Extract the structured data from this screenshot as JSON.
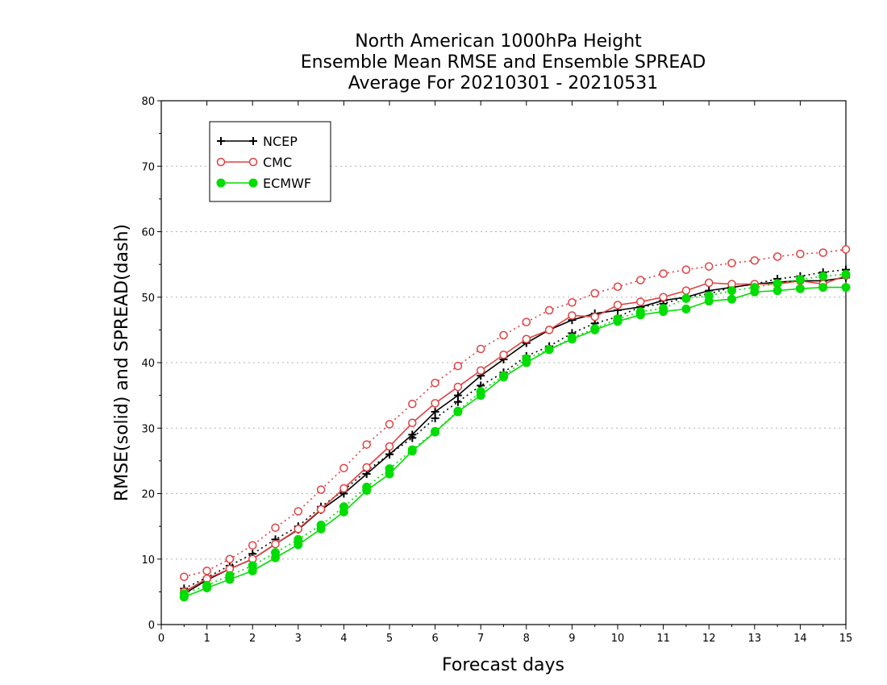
{
  "chart_data": {
    "type": "line",
    "title_lines": [
      "North American 1000hPa Height",
      "Ensemble Mean RMSE and Ensemble SPREAD",
      "Average For 20210301 - 20210531"
    ],
    "xlabel": "Forecast days",
    "ylabel": "RMSE(solid) and SPREAD(dash)",
    "xlim": [
      0,
      15
    ],
    "ylim": [
      0,
      80
    ],
    "xticks": [
      "0",
      "1",
      "2",
      "3",
      "4",
      "5",
      "6",
      "7",
      "8",
      "9",
      "10",
      "11",
      "12",
      "13",
      "14",
      "15"
    ],
    "yticks": [
      "0",
      "10",
      "20",
      "30",
      "40",
      "50",
      "60",
      "70",
      "80"
    ],
    "grid": true,
    "legend_position": "top-left",
    "x": [
      0.5,
      1,
      1.5,
      2,
      2.5,
      3,
      3.5,
      4,
      4.5,
      5,
      5.5,
      6,
      6.5,
      7,
      7.5,
      8,
      8.5,
      9,
      9.5,
      10,
      10.5,
      11,
      11.5,
      12,
      12.5,
      13,
      13.5,
      14,
      14.5,
      15
    ],
    "series": [
      {
        "name": "NCEP",
        "color": "#000000",
        "marker": "plus",
        "rmse": [
          4.7,
          6.8,
          8.5,
          10.0,
          12.3,
          14.5,
          17.5,
          20.0,
          23.0,
          26.0,
          29.0,
          32.5,
          35.0,
          38.0,
          40.5,
          43.0,
          45.0,
          46.5,
          47.5,
          48.0,
          48.5,
          49.5,
          50.0,
          51.0,
          51.5,
          52.0,
          52.3,
          52.5,
          52.5,
          53.0
        ],
        "spread": [
          5.5,
          7.2,
          9.0,
          10.8,
          13.0,
          15.0,
          18.0,
          20.5,
          23.5,
          26.0,
          28.5,
          31.5,
          34.0,
          36.5,
          38.5,
          41.0,
          42.5,
          44.5,
          46.0,
          47.0,
          48.5,
          49.0,
          50.0,
          50.5,
          51.5,
          52.0,
          52.8,
          53.2,
          53.8,
          54.2
        ]
      },
      {
        "name": "CMC",
        "color": "#e04040",
        "marker": "open-circle",
        "rmse": [
          5.0,
          7.0,
          8.5,
          10.0,
          12.3,
          14.6,
          17.6,
          20.8,
          24.0,
          27.2,
          30.8,
          33.8,
          36.3,
          38.8,
          41.2,
          43.6,
          45.0,
          47.2,
          47.0,
          48.8,
          49.3,
          50.0,
          51.0,
          52.2,
          52.0,
          52.0,
          52.0,
          52.5,
          52.0,
          53.3
        ],
        "spread": [
          7.3,
          8.2,
          10.0,
          12.1,
          14.8,
          17.3,
          20.6,
          23.9,
          27.5,
          30.6,
          33.7,
          36.9,
          39.5,
          42.1,
          44.2,
          46.2,
          48.0,
          49.2,
          50.6,
          51.6,
          52.6,
          53.6,
          54.2,
          54.7,
          55.2,
          55.6,
          56.2,
          56.6,
          56.8,
          57.3
        ]
      },
      {
        "name": "ECMWF",
        "color": "#00dd00",
        "marker": "filled-circle",
        "rmse": [
          4.2,
          5.6,
          6.9,
          8.2,
          10.2,
          12.2,
          14.6,
          17.2,
          20.5,
          23.0,
          26.5,
          29.4,
          32.5,
          35.0,
          37.8,
          40.0,
          42.0,
          43.6,
          45.0,
          46.3,
          47.3,
          47.8,
          48.2,
          49.4,
          49.7,
          50.8,
          51.0,
          51.3,
          51.5,
          51.5
        ],
        "spread": [
          4.7,
          6.0,
          7.5,
          9.0,
          11.0,
          13.0,
          15.2,
          18.0,
          21.0,
          23.8,
          26.7,
          29.5,
          32.6,
          35.6,
          38.0,
          40.6,
          42.0,
          43.8,
          45.2,
          46.7,
          47.8,
          48.3,
          49.8,
          50.2,
          51.0,
          51.5,
          52.1,
          52.7,
          53.2,
          53.5
        ]
      }
    ]
  }
}
